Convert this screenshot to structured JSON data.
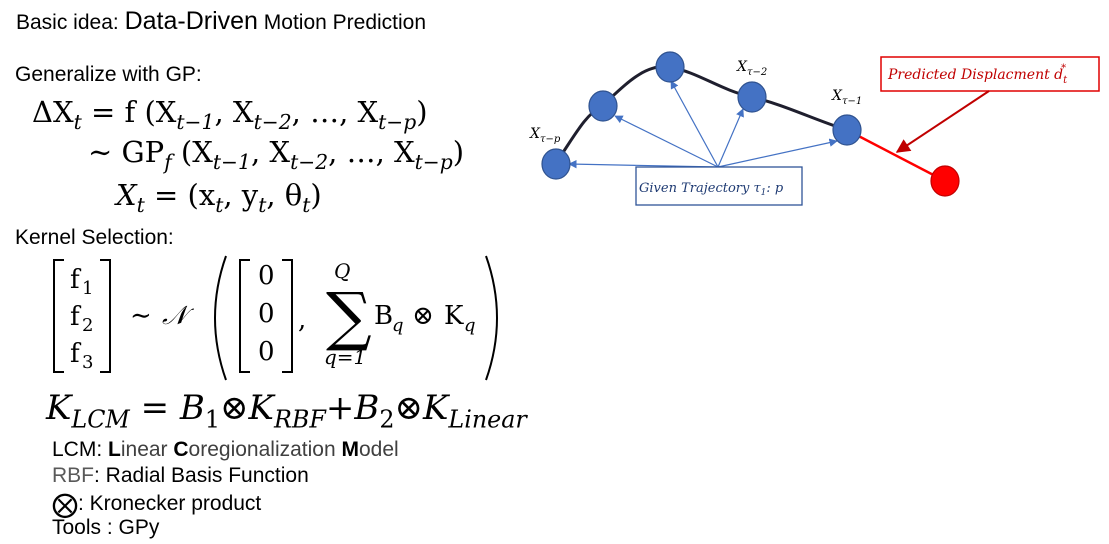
{
  "title": {
    "part1": "Basic idea: ",
    "part2": "Data-Driven",
    "part3": " Motion Prediction"
  },
  "gp_heading": "Generalize with GP:",
  "equations": {
    "eq1_lhs": "ΔX",
    "eq1_sub": "t",
    "eq1_mid": " = f ",
    "eq1_args": "(X",
    "eq2_prefix": "∼ GP",
    "eq2_sub": "f",
    "eq3": "X"
  },
  "args": {
    "s1": "t−1",
    "s2": "t−2",
    "s3": "t−p",
    "dots": "…"
  },
  "kernel_heading": "Kernel Selection:",
  "matrix": {
    "f1": "f",
    "f2": "f",
    "f3": "f",
    "i1": "1",
    "i2": "2",
    "i3": "3",
    "zero": "0",
    "sim": "∼",
    "normal": "𝒩",
    "sum_top": "Q",
    "sum_bottom": "q=1",
    "B": "B",
    "K": "K",
    "q": "q",
    "otimes": "⊗"
  },
  "klcm": {
    "K": "K",
    "lcm": "LCM",
    "B1": "B",
    "one": "1",
    "rbf": "RBF",
    "two": "2",
    "linear": "Linear"
  },
  "notes": {
    "lcm_prefix": "LCM: ",
    "lcm_L": "L",
    "lcm_inear": "inear ",
    "lcm_C": "C",
    "lcm_oregionalization": "oregionalization ",
    "lcm_M": "M",
    "lcm_odel": "odel",
    "rbf_prefix": "RBF",
    "rbf_text": ": Radial Basis Function",
    "kron_symbol": "⨂",
    "kron_text": ": Kronecker product",
    "tools": "Tools : GPy"
  },
  "diagram": {
    "given_label": "Given Trajectory τ",
    "given_sub": "1",
    "given_rest": ": p",
    "predicted_label": "Predicted Displacment d",
    "predicted_sub": "t",
    "predicted_sup": "*",
    "x_label": "X",
    "sub_p": "τ−p",
    "sub_2": "τ−2",
    "sub_1": "τ−1",
    "colors": {
      "node": "#4472C4",
      "node_stroke": "#2F528F",
      "predicted": "#FF0000",
      "curve": "#1F1F2E",
      "arrow": "#4472C4",
      "box": "#2F5597",
      "red_box": "#E00000"
    }
  }
}
